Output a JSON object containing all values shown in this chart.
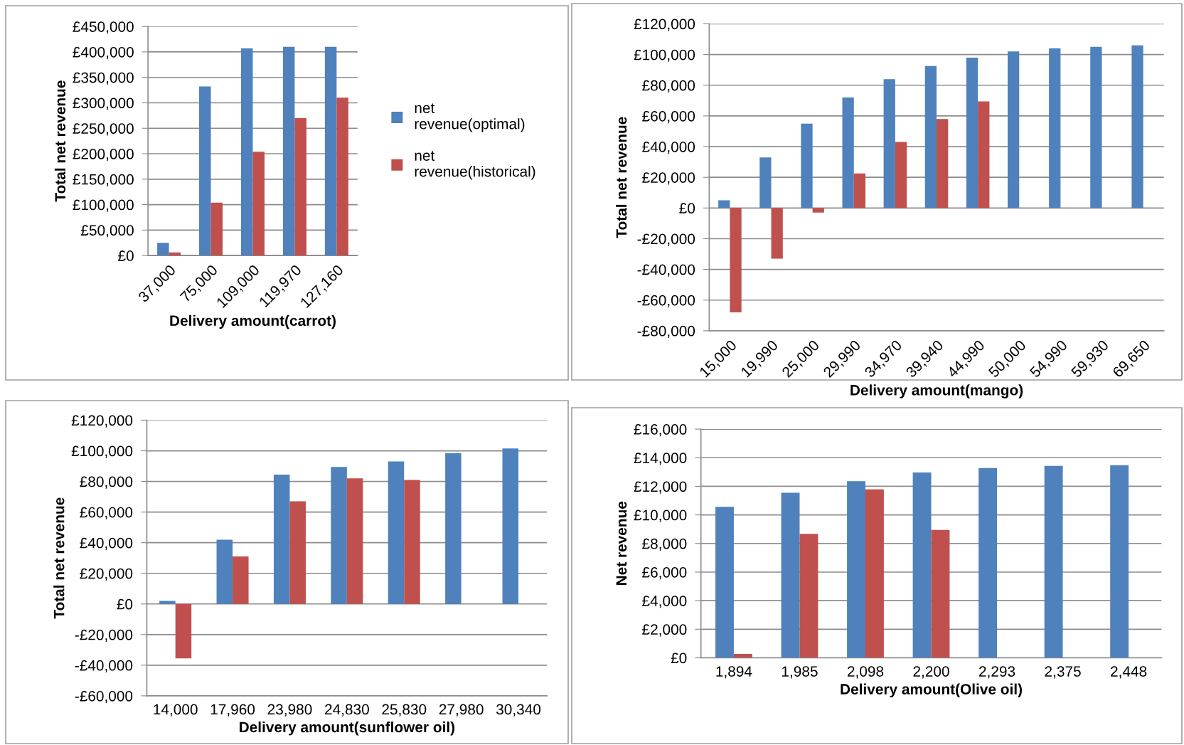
{
  "chart_data": [
    {
      "type": "bar",
      "xlabel": "Delivery amount(carrot)",
      "ylabel": "Total net revenue",
      "categories": [
        "37,000",
        "75,000",
        "109,000",
        "119,970",
        "127,160"
      ],
      "series": [
        {
          "name": "net revenue(optimal)",
          "color": "#4f81bd",
          "values": [
            25000,
            332000,
            407000,
            410000,
            410000
          ]
        },
        {
          "name": "net revenue(historical)",
          "color": "#c0504d",
          "values": [
            6000,
            104000,
            204000,
            270000,
            310000
          ]
        }
      ],
      "ylim": [
        0,
        450000
      ],
      "yticks": [
        {
          "value": 0,
          "label": "£0"
        },
        {
          "value": 50000,
          "label": "£50,000"
        },
        {
          "value": 100000,
          "label": "£100,000"
        },
        {
          "value": 150000,
          "label": "£150,000"
        },
        {
          "value": 200000,
          "label": "£200,000"
        },
        {
          "value": 250000,
          "label": "£250,000"
        },
        {
          "value": 300000,
          "label": "£300,000"
        },
        {
          "value": 350000,
          "label": "£350,000"
        },
        {
          "value": 400000,
          "label": "£400,000"
        },
        {
          "value": 450000,
          "label": "£450,000"
        }
      ],
      "grid": "y",
      "legend": "right"
    },
    {
      "type": "bar",
      "xlabel": "Delivery amount(mango)",
      "ylabel": "Total net revenue",
      "categories": [
        "15,000",
        "19,990",
        "25,000",
        "29,990",
        "34,970",
        "39,940",
        "44,990",
        "50,000",
        "54,990",
        "59,930",
        "69,650"
      ],
      "series": [
        {
          "color": "#4f81bd",
          "values": [
            5000,
            33000,
            55000,
            72000,
            84000,
            92500,
            98000,
            102000,
            104000,
            105000,
            106000
          ]
        },
        {
          "color": "#c0504d",
          "values": [
            -68000,
            -33000,
            -3000,
            22500,
            43000,
            58000,
            69500,
            null,
            null,
            null,
            null
          ]
        }
      ],
      "ylim": [
        -80000,
        120000
      ],
      "yticks": [
        {
          "value": -80000,
          "label": "-£80,000"
        },
        {
          "value": -60000,
          "label": "-£60,000"
        },
        {
          "value": -40000,
          "label": "-£40,000"
        },
        {
          "value": -20000,
          "label": "-£20,000"
        },
        {
          "value": 0,
          "label": "£0"
        },
        {
          "value": 20000,
          "label": "£20,000"
        },
        {
          "value": 40000,
          "label": "£40,000"
        },
        {
          "value": 60000,
          "label": "£60,000"
        },
        {
          "value": 80000,
          "label": "£80,000"
        },
        {
          "value": 100000,
          "label": "£100,000"
        },
        {
          "value": 120000,
          "label": "£120,000"
        }
      ],
      "grid": "y"
    },
    {
      "type": "bar",
      "xlabel": "Delivery amount(sunflower oil)",
      "ylabel": "Total net revenue",
      "categories": [
        "14,000",
        "17,960",
        "23,980",
        "24,830",
        "25,830",
        "27,980",
        "30,340"
      ],
      "series": [
        {
          "color": "#4f81bd",
          "values": [
            2000,
            42000,
            84500,
            89500,
            93000,
            98500,
            101500
          ]
        },
        {
          "color": "#c0504d",
          "values": [
            -35500,
            31000,
            67000,
            82000,
            81000,
            null,
            null
          ]
        }
      ],
      "ylim": [
        -60000,
        120000
      ],
      "yticks": [
        {
          "value": -60000,
          "label": "-£60,000"
        },
        {
          "value": -40000,
          "label": "-£40,000"
        },
        {
          "value": -20000,
          "label": "-£20,000"
        },
        {
          "value": 0,
          "label": "£0"
        },
        {
          "value": 20000,
          "label": "£20,000"
        },
        {
          "value": 40000,
          "label": "£40,000"
        },
        {
          "value": 60000,
          "label": "£60,000"
        },
        {
          "value": 80000,
          "label": "£80,000"
        },
        {
          "value": 100000,
          "label": "£100,000"
        },
        {
          "value": 120000,
          "label": "£120,000"
        }
      ],
      "grid": "y"
    },
    {
      "type": "bar",
      "xlabel": "Delivery amount(Olive oil)",
      "ylabel": "Net revenue",
      "categories": [
        "1,894",
        "1,985",
        "2,098",
        "2,200",
        "2,293",
        "2,375",
        "2,448"
      ],
      "series": [
        {
          "color": "#4f81bd",
          "values": [
            10560,
            11550,
            12360,
            12970,
            13280,
            13430,
            13480
          ]
        },
        {
          "color": "#c0504d",
          "values": [
            280,
            8670,
            11780,
            8950,
            null,
            null,
            null
          ]
        }
      ],
      "ylim": [
        0,
        16000
      ],
      "yticks": [
        {
          "value": 0,
          "label": "£0"
        },
        {
          "value": 2000,
          "label": "£2,000"
        },
        {
          "value": 4000,
          "label": "£4,000"
        },
        {
          "value": 6000,
          "label": "£6,000"
        },
        {
          "value": 8000,
          "label": "£8,000"
        },
        {
          "value": 10000,
          "label": "£10,000"
        },
        {
          "value": 12000,
          "label": "£12,000"
        },
        {
          "value": 14000,
          "label": "£14,000"
        },
        {
          "value": 16000,
          "label": "£16,000"
        }
      ],
      "grid": "y"
    }
  ]
}
